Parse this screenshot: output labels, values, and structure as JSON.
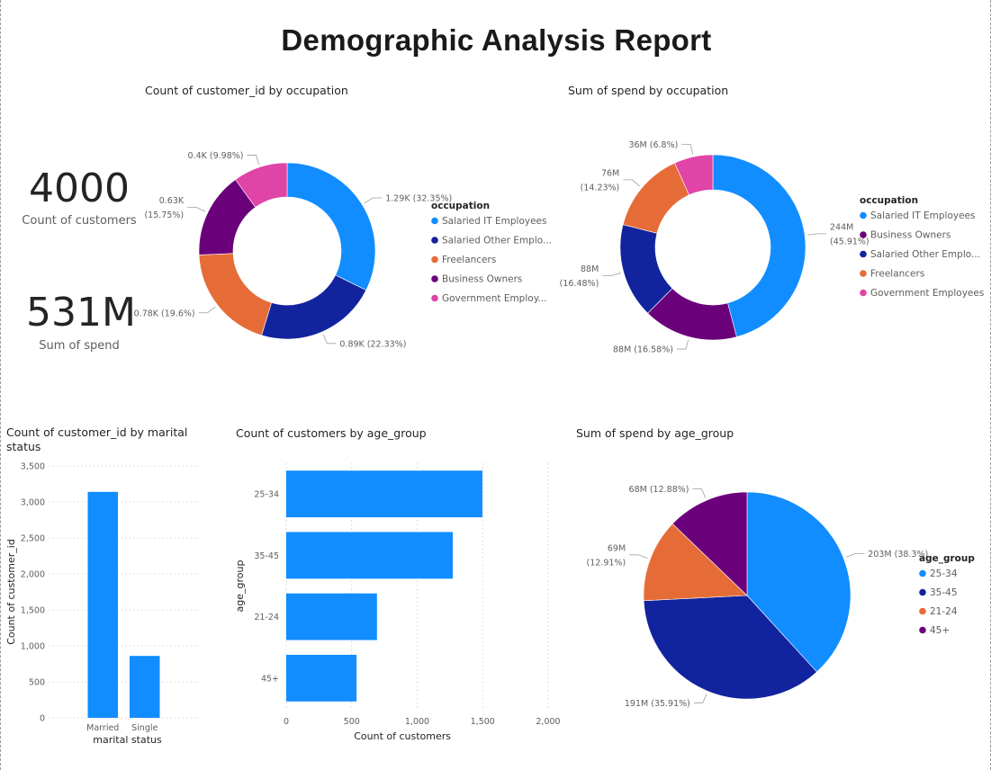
{
  "report": {
    "title": "Demographic Analysis Report"
  },
  "colors": {
    "blue": "#118DFF",
    "navy": "#12239E",
    "orange": "#E66C37",
    "purple": "#6B007B",
    "pink": "#E044A7",
    "grid": "#c8c6c4",
    "label": "#605e5c",
    "leader": "#a19f9d"
  },
  "kpis": [
    {
      "value": "4000",
      "label": "Count of customers"
    },
    {
      "value": "531M",
      "label": "Sum of spend"
    }
  ],
  "chart_data": [
    {
      "id": "occ-count",
      "type": "pie",
      "donut": true,
      "title": "Count of customer_id by occupation",
      "legend_title": "occupation",
      "legend_position": "right",
      "legend": [
        "Salaried IT Employees",
        "Salaried Other Emplo...",
        "Freelancers",
        "Business Owners",
        "Government Employ..."
      ],
      "slices": [
        {
          "name": "Salaried IT Employees",
          "value": 1294,
          "color": "blue",
          "label": [
            "1.29K (32.35%)"
          ]
        },
        {
          "name": "Salaried Other Employees",
          "value": 893,
          "color": "navy",
          "label": [
            "0.89K (22.33%)"
          ]
        },
        {
          "name": "Freelancers",
          "value": 784,
          "color": "orange",
          "label": [
            "0.78K (19.6%)"
          ]
        },
        {
          "name": "Business Owners",
          "value": 630,
          "color": "purple",
          "label": [
            "0.63K",
            "(15.75%)"
          ]
        },
        {
          "name": "Government Employees",
          "value": 399,
          "color": "pink",
          "label": [
            "0.4K (9.98%)"
          ]
        }
      ]
    },
    {
      "id": "occ-spend",
      "type": "pie",
      "donut": true,
      "title": "Sum of spend by occupation",
      "legend_title": "occupation",
      "legend_position": "right",
      "legend": [
        "Salaried IT Employees",
        "Business Owners",
        "Salaried Other Emplo...",
        "Freelancers",
        "Government Employees"
      ],
      "slices": [
        {
          "name": "Salaried IT Employees",
          "value": 244,
          "color": "blue",
          "label": [
            "244M",
            "(45.91%)"
          ]
        },
        {
          "name": "Business Owners",
          "value": 88,
          "color": "purple",
          "label": [
            "88M (16.58%)"
          ]
        },
        {
          "name": "Salaried Other Employees",
          "value": 88,
          "color": "navy",
          "label": [
            "88M",
            "(16.48%)"
          ]
        },
        {
          "name": "Freelancers",
          "value": 76,
          "color": "orange",
          "label": [
            "76M",
            "(14.23%)"
          ]
        },
        {
          "name": "Government Employees",
          "value": 36,
          "color": "pink",
          "label": [
            "36M (6.8%)"
          ]
        }
      ]
    },
    {
      "id": "marital",
      "type": "bar",
      "orientation": "vertical",
      "title": "Count of customer_id by marital status",
      "categories": [
        "Married",
        "Single"
      ],
      "values": [
        3140,
        860
      ],
      "xlabel": "marital status",
      "ylabel": "Count of customer_id",
      "ylim": [
        0,
        3500
      ],
      "yticks": [
        0,
        500,
        1000,
        1500,
        2000,
        2500,
        3000,
        3500
      ],
      "ytick_labels": [
        "0",
        "500",
        "1,000",
        "1,500",
        "2,000",
        "2,500",
        "3,000",
        "3,500"
      ],
      "grid": true,
      "color": "blue"
    },
    {
      "id": "age-count",
      "type": "bar",
      "orientation": "horizontal",
      "title": "Count of customers by age_group",
      "categories": [
        "25-34",
        "35-45",
        "21-24",
        "45+"
      ],
      "values": [
        1498,
        1272,
        693,
        537
      ],
      "xlabel": "Count of customers",
      "ylabel": "age_group",
      "xlim": [
        0,
        2000
      ],
      "xticks": [
        0,
        500,
        1000,
        1500,
        2000
      ],
      "xtick_labels": [
        "0",
        "500",
        "1,000",
        "1,500",
        "2,000"
      ],
      "grid": true,
      "color": "blue"
    },
    {
      "id": "age-spend",
      "type": "pie",
      "donut": false,
      "title": "Sum of spend by age_group",
      "legend_title": "age_group",
      "legend_position": "right",
      "legend": [
        "25-34",
        "35-45",
        "21-24",
        "45+"
      ],
      "slices": [
        {
          "name": "25-34",
          "value": 203,
          "color": "blue",
          "label": [
            "203M (38.3%)"
          ]
        },
        {
          "name": "35-45",
          "value": 191,
          "color": "navy",
          "label": [
            "191M (35.91%)"
          ]
        },
        {
          "name": "21-24",
          "value": 69,
          "color": "orange",
          "label": [
            "69M",
            "(12.91%)"
          ]
        },
        {
          "name": "45+",
          "value": 68,
          "color": "purple",
          "label": [
            "68M (12.88%)"
          ]
        }
      ]
    }
  ]
}
